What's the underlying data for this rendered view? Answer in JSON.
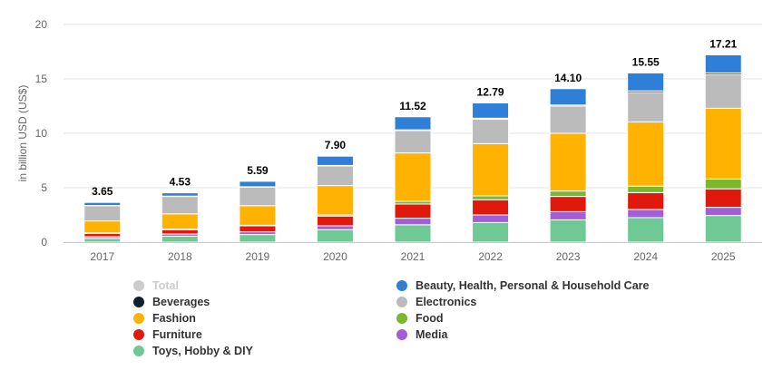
{
  "chart_data": {
    "type": "bar",
    "stacked": true,
    "title": "",
    "xlabel": "",
    "ylabel": "in billion USD (US$)",
    "ylim": [
      0,
      20
    ],
    "yticks": [
      0,
      5,
      10,
      15,
      20
    ],
    "grid": true,
    "legend_position": "bottom",
    "categories": [
      "2017",
      "2018",
      "2019",
      "2020",
      "2021",
      "2022",
      "2023",
      "2024",
      "2025"
    ],
    "totals": [
      3.65,
      4.53,
      5.59,
      7.9,
      11.52,
      12.79,
      14.1,
      15.55,
      17.21
    ],
    "total_labels": [
      "3.65",
      "4.53",
      "5.59",
      "7.90",
      "11.52",
      "12.79",
      "14.10",
      "15.55",
      "17.21"
    ],
    "series": [
      {
        "name": "Toys, Hobby & DIY",
        "color": "#6ec995",
        "values": [
          0.35,
          0.55,
          0.7,
          1.15,
          1.6,
          1.8,
          2.05,
          2.25,
          2.45
        ]
      },
      {
        "name": "Media",
        "color": "#a05fd5",
        "values": [
          0.15,
          0.2,
          0.25,
          0.35,
          0.6,
          0.7,
          0.75,
          0.75,
          0.75
        ]
      },
      {
        "name": "Furniture",
        "color": "#e0190c",
        "values": [
          0.3,
          0.4,
          0.55,
          0.9,
          1.3,
          1.4,
          1.4,
          1.55,
          1.7
        ]
      },
      {
        "name": "Food",
        "color": "#7cb82f",
        "values": [
          0.05,
          0.05,
          0.05,
          0.1,
          0.25,
          0.35,
          0.5,
          0.6,
          0.9
        ]
      },
      {
        "name": "Fashion",
        "color": "#ffb300",
        "values": [
          1.1,
          1.4,
          1.8,
          2.7,
          4.45,
          4.8,
          5.3,
          5.9,
          6.5
        ]
      },
      {
        "name": "Electronics",
        "color": "#bbbbbb",
        "values": [
          1.4,
          1.6,
          1.7,
          1.8,
          2.05,
          2.25,
          2.5,
          2.7,
          3.1
        ]
      },
      {
        "name": "Beverages",
        "color": "#0e1f2f",
        "values": [
          0.02,
          0.03,
          0.04,
          0.05,
          0.07,
          0.09,
          0.1,
          0.15,
          0.15
        ]
      },
      {
        "name": "Beauty, Health, Personal & Household Care",
        "color": "#2f7ed8",
        "values": [
          0.28,
          0.3,
          0.5,
          0.85,
          1.2,
          1.4,
          1.5,
          1.65,
          1.66
        ]
      }
    ]
  },
  "legend": [
    {
      "label": "Total",
      "color": "#cccccc",
      "disabled": true
    },
    {
      "label": "Beauty, Health, Personal & Household Care",
      "color": "#2f7ed8",
      "disabled": false
    },
    {
      "label": "Beverages",
      "color": "#0e1f2f",
      "disabled": false
    },
    {
      "label": "Electronics",
      "color": "#bbbbbb",
      "disabled": false
    },
    {
      "label": "Fashion",
      "color": "#ffb300",
      "disabled": false
    },
    {
      "label": "Food",
      "color": "#7cb82f",
      "disabled": false
    },
    {
      "label": "Furniture",
      "color": "#e0190c",
      "disabled": false
    },
    {
      "label": "Media",
      "color": "#a05fd5",
      "disabled": false
    },
    {
      "label": "Toys, Hobby & DIY",
      "color": "#6ec995",
      "disabled": false
    }
  ]
}
